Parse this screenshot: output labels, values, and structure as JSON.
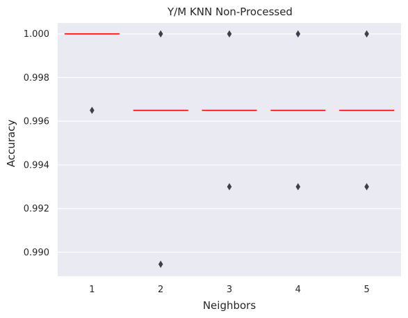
{
  "chart_data": {
    "type": "box",
    "title": "Y/M KNN Non-Processed",
    "xlabel": "Neighbors",
    "ylabel": "Accuracy",
    "categories": [
      "1",
      "2",
      "3",
      "4",
      "5"
    ],
    "ylim": [
      0.9889,
      1.0005
    ],
    "yticks": [
      0.99,
      0.992,
      0.994,
      0.996,
      0.998,
      1.0
    ],
    "ytick_labels": [
      "0.990",
      "0.992",
      "0.994",
      "0.996",
      "0.998",
      "1.000"
    ],
    "medians": [
      1.0,
      0.9965,
      0.9965,
      0.9965,
      0.9965
    ],
    "outliers": [
      [
        0.9965
      ],
      [
        1.0,
        0.98945
      ],
      [
        1.0,
        0.993
      ],
      [
        1.0,
        0.993
      ],
      [
        1.0,
        0.993
      ]
    ],
    "grid": true,
    "style": {
      "background": "#EAEAF2",
      "grid_color": "#ffffff",
      "median_color": "#FF0000",
      "outlier_color": "#3F3F4B"
    }
  }
}
